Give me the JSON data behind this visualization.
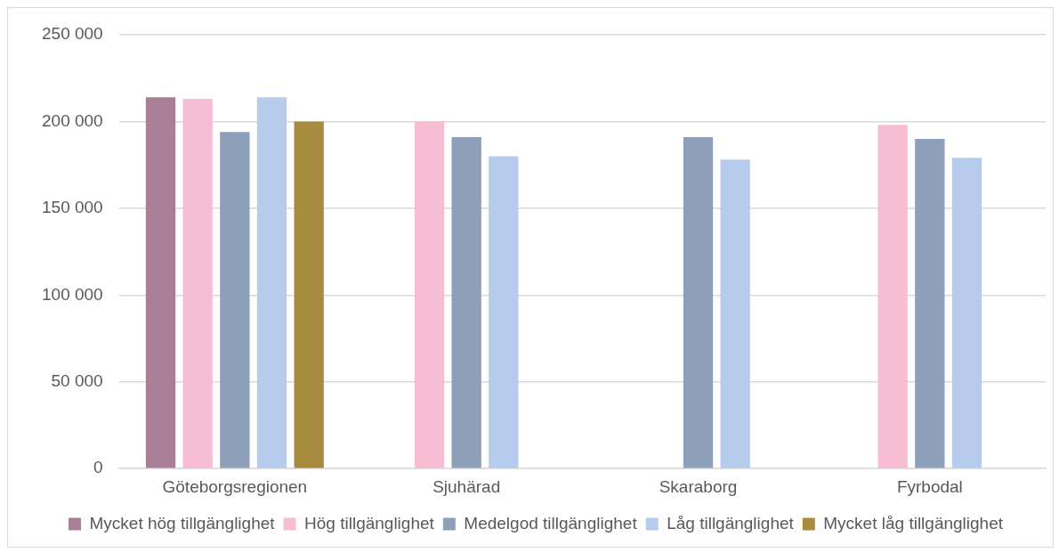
{
  "chart_data": {
    "type": "bar",
    "categories": [
      "Göteborgsregionen",
      "Sjuhärad",
      "Skaraborg",
      "Fyrbodal"
    ],
    "series": [
      {
        "name": "Mycket hög tillgänglighet",
        "color": "#a87f96",
        "values": [
          214000,
          null,
          null,
          null
        ]
      },
      {
        "name": "Hög tillgänglighet",
        "color": "#f7bdd2",
        "values": [
          213000,
          200000,
          null,
          198000
        ]
      },
      {
        "name": "Medelgod tillgänglighet",
        "color": "#8e9fb9",
        "values": [
          194000,
          191000,
          191000,
          190000
        ]
      },
      {
        "name": "Låg tillgänglighet",
        "color": "#b7cbed",
        "values": [
          214000,
          180000,
          178000,
          179000
        ]
      },
      {
        "name": "Mycket låg tillgänglighet",
        "color": "#a78b3e",
        "values": [
          200000,
          null,
          null,
          null
        ]
      }
    ],
    "ylim": [
      0,
      250000
    ],
    "yticks": [
      {
        "value": 0,
        "label": "0"
      },
      {
        "value": 50000,
        "label": "50 000"
      },
      {
        "value": 100000,
        "label": "100 000"
      },
      {
        "value": 150000,
        "label": "150 000"
      },
      {
        "value": 200000,
        "label": "200 000"
      },
      {
        "value": 250000,
        "label": "250 000"
      }
    ],
    "grid": "y",
    "legend": "bottom"
  }
}
